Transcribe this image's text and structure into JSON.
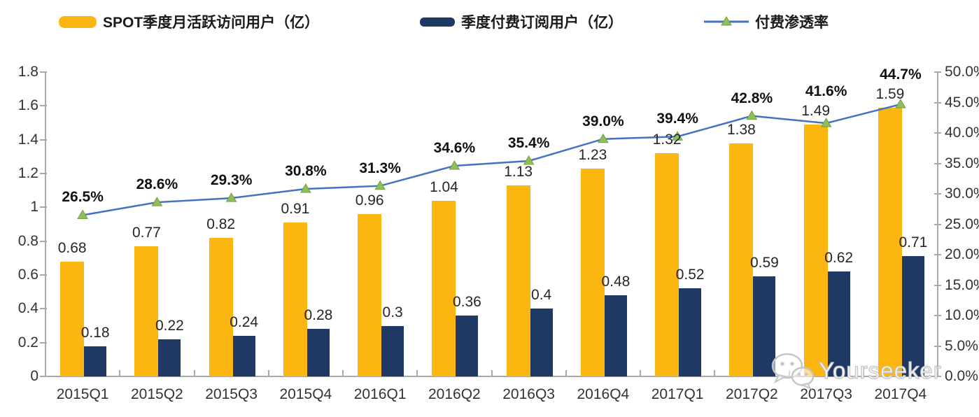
{
  "legend": [
    {
      "label": "SPOT季度月活跃访问用户（亿）",
      "color": "#FBB612",
      "type": "bar"
    },
    {
      "label": "季度付费订阅用户（亿）",
      "color": "#1F3864",
      "type": "bar"
    },
    {
      "label": "付费渗透率",
      "color": "#4472C4",
      "marker_fill": "#90BE5A",
      "marker_stroke": "#6FA33F",
      "type": "line"
    }
  ],
  "chart_data": {
    "type": "combo",
    "categories": [
      "2015Q1",
      "2015Q2",
      "2015Q3",
      "2015Q4",
      "2016Q1",
      "2016Q2",
      "2016Q3",
      "2016Q4",
      "2017Q1",
      "2017Q2",
      "2017Q3",
      "2017Q4"
    ],
    "series": [
      {
        "name": "SPOT季度月活跃访问用户（亿）",
        "type": "bar",
        "axis": "left",
        "color": "#FBB612",
        "values": [
          0.68,
          0.77,
          0.82,
          0.91,
          0.96,
          1.04,
          1.13,
          1.23,
          1.32,
          1.38,
          1.49,
          1.59
        ],
        "labels": [
          "0.68",
          "0.77",
          "0.82",
          "0.91",
          "0.96",
          "1.04",
          "1.13",
          "1.23",
          "1.32",
          "1.38",
          "1.49",
          "1.59"
        ]
      },
      {
        "name": "季度付费订阅用户（亿）",
        "type": "bar",
        "axis": "left",
        "color": "#1F3864",
        "values": [
          0.18,
          0.22,
          0.24,
          0.28,
          0.3,
          0.36,
          0.4,
          0.48,
          0.52,
          0.59,
          0.62,
          0.71
        ],
        "labels": [
          "0.18",
          "0.22",
          "0.24",
          "0.28",
          "0.3",
          "0.36",
          "0.4",
          "0.48",
          "0.52",
          "0.59",
          "0.62",
          "0.71"
        ]
      },
      {
        "name": "付费渗透率",
        "type": "line",
        "axis": "right",
        "color": "#4472C4",
        "marker_fill": "#90BE5A",
        "marker_stroke": "#6FA33F",
        "values": [
          26.5,
          28.6,
          29.3,
          30.8,
          31.3,
          34.6,
          35.4,
          39.0,
          39.4,
          42.8,
          41.6,
          44.7
        ],
        "labels": [
          "26.5%",
          "28.6%",
          "29.3%",
          "30.8%",
          "31.3%",
          "34.6%",
          "35.4%",
          "39.0%",
          "39.4%",
          "42.8%",
          "41.6%",
          "44.7%"
        ]
      }
    ],
    "left_axis": {
      "min": 0,
      "max": 1.8,
      "ticks": [
        "1.8",
        "1.6",
        "1.4",
        "1.2",
        "1",
        "0.8",
        "0.6",
        "0.4",
        "0.2",
        "0"
      ]
    },
    "right_axis": {
      "min": 0,
      "max": 50,
      "ticks": [
        "50.0%",
        "45.0%",
        "40.0%",
        "35.0%",
        "30.0%",
        "25.0%",
        "20.0%",
        "15.0%",
        "10.0%",
        "5.0%",
        "0.0%"
      ]
    },
    "grid": false,
    "legend_position": "top"
  },
  "watermark": {
    "text": "Yourseeker",
    "icon": "wechat-icon"
  },
  "colors": {
    "axis": "#A9A9A9",
    "label_text": "#262626",
    "watermark_outline": "#C6C6C6"
  }
}
